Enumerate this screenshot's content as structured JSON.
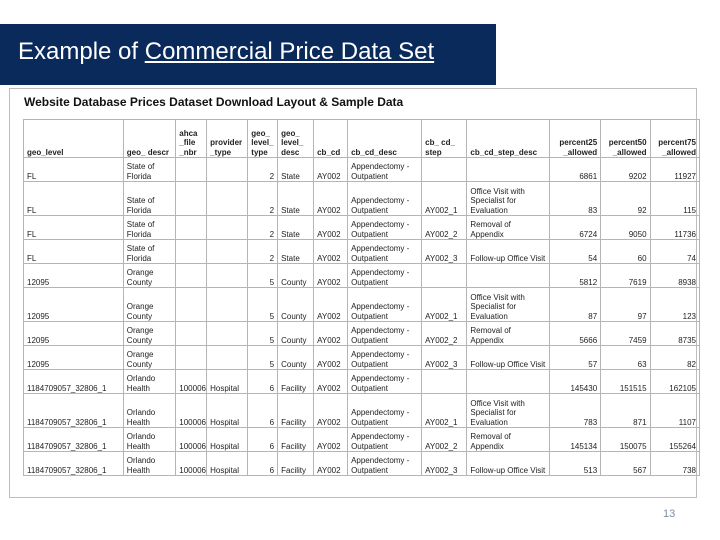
{
  "slide": {
    "title_prefix": "Example of ",
    "title_link": "Commercial Price Data Set",
    "page_number": "13"
  },
  "table": {
    "caption": "Website Database Prices Dataset Download Layout & Sample Data",
    "headers": [
      "geo_level",
      "geo_ descr",
      "ahca _file _nbr",
      "provider _type",
      "geo_ level_ type",
      "geo_ level_ desc",
      "cb_cd",
      "cb_cd_desc",
      "cb_ cd_ step",
      "cb_cd_step_desc",
      "percent25 _allowed",
      "percent50 _allowed",
      "percent75 _allowed"
    ],
    "rows": [
      [
        "FL",
        "State of Florida",
        "",
        "",
        "2",
        "State",
        "AY002",
        "Appendectomy - Outpatient",
        "",
        "",
        "6861",
        "9202",
        "11927"
      ],
      [
        "FL",
        "State of Florida",
        "",
        "",
        "2",
        "State",
        "AY002",
        "Appendectomy - Outpatient",
        "AY002_1",
        "Office Visit with Specialist for Evaluation",
        "83",
        "92",
        "115"
      ],
      [
        "FL",
        "State of Florida",
        "",
        "",
        "2",
        "State",
        "AY002",
        "Appendectomy - Outpatient",
        "AY002_2",
        "Removal of Appendix",
        "6724",
        "9050",
        "11736"
      ],
      [
        "FL",
        "State of Florida",
        "",
        "",
        "2",
        "State",
        "AY002",
        "Appendectomy - Outpatient",
        "AY002_3",
        "Follow-up Office Visit",
        "54",
        "60",
        "74"
      ],
      [
        "12095",
        "Orange County",
        "",
        "",
        "5",
        "County",
        "AY002",
        "Appendectomy - Outpatient",
        "",
        "",
        "5812",
        "7619",
        "8938"
      ],
      [
        "12095",
        "Orange County",
        "",
        "",
        "5",
        "County",
        "AY002",
        "Appendectomy - Outpatient",
        "AY002_1",
        "Office Visit with Specialist for Evaluation",
        "87",
        "97",
        "123"
      ],
      [
        "12095",
        "Orange County",
        "",
        "",
        "5",
        "County",
        "AY002",
        "Appendectomy - Outpatient",
        "AY002_2",
        "Removal of Appendix",
        "5666",
        "7459",
        "8735"
      ],
      [
        "12095",
        "Orange County",
        "",
        "",
        "5",
        "County",
        "AY002",
        "Appendectomy - Outpatient",
        "AY002_3",
        "Follow-up Office Visit",
        "57",
        "63",
        "82"
      ],
      [
        "1184709057_32806_1",
        "Orlando Health",
        "100006",
        "Hospital",
        "6",
        "Facility",
        "AY002",
        "Appendectomy - Outpatient",
        "",
        "",
        "145430",
        "151515",
        "162105"
      ],
      [
        "1184709057_32806_1",
        "Orlando Health",
        "100006",
        "Hospital",
        "6",
        "Facility",
        "AY002",
        "Appendectomy - Outpatient",
        "AY002_1",
        "Office Visit with Specialist for Evaluation",
        "783",
        "871",
        "1107"
      ],
      [
        "1184709057_32806_1",
        "Orlando Health",
        "100006",
        "Hospital",
        "6",
        "Facility",
        "AY002",
        "Appendectomy - Outpatient",
        "AY002_2",
        "Removal of Appendix",
        "145134",
        "150075",
        "155264"
      ],
      [
        "1184709057_32806_1",
        "Orlando Health",
        "100006",
        "Hospital",
        "6",
        "Facility",
        "AY002",
        "Appendectomy - Outpatient",
        "AY002_3",
        "Follow-up Office Visit",
        "513",
        "567",
        "738"
      ]
    ]
  }
}
